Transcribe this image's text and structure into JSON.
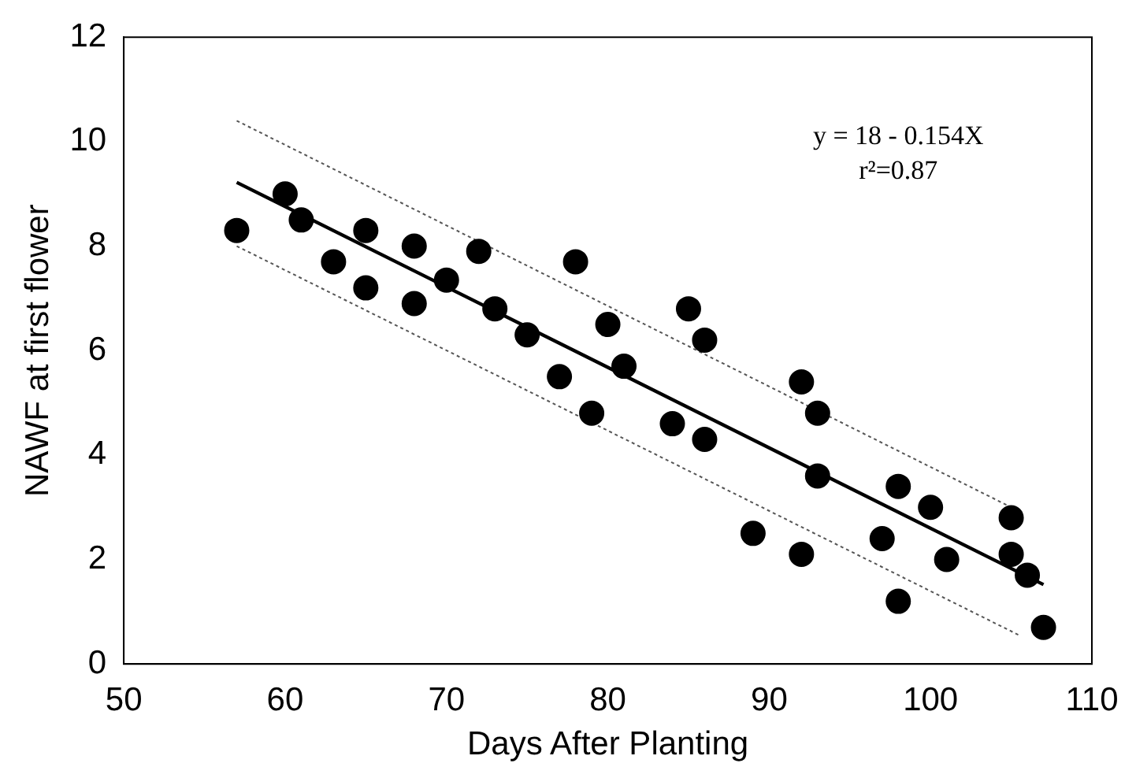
{
  "chart_data": {
    "type": "scatter",
    "xlabel": "Days After Planting",
    "ylabel": "NAWF at first flower",
    "xlim": [
      50,
      110
    ],
    "xticks": [
      50,
      60,
      70,
      80,
      90,
      100,
      110
    ],
    "ylim": [
      0,
      12
    ],
    "yticks": [
      0,
      2,
      4,
      6,
      8,
      10,
      12
    ],
    "grid": false,
    "legend": false,
    "annotations": [
      "y = 18 - 0.154X",
      "r²=0.87"
    ],
    "series": [
      {
        "marker": "circle",
        "color": "#000000",
        "x": [
          57,
          60,
          61,
          63,
          65,
          65,
          68,
          68,
          70,
          72,
          73,
          75,
          77,
          78,
          79,
          80,
          81,
          84,
          85,
          86,
          86,
          89,
          92,
          92,
          93,
          93,
          97,
          98,
          98,
          100,
          101,
          105,
          105,
          106,
          107
        ],
        "values": [
          8.3,
          9.0,
          8.5,
          7.7,
          8.3,
          7.2,
          8.0,
          6.9,
          7.35,
          7.9,
          6.8,
          6.3,
          5.5,
          7.7,
          4.8,
          6.5,
          5.7,
          4.6,
          6.8,
          6.2,
          4.3,
          2.5,
          5.4,
          2.1,
          4.8,
          3.6,
          2.4,
          3.4,
          1.2,
          3.0,
          2.0,
          2.8,
          2.1,
          1.7,
          0.7
        ]
      },
      {
        "type": "line",
        "color": "#000000",
        "x": [
          57,
          107
        ],
        "values": [
          9.22,
          1.52
        ],
        "line_style": "solid",
        "marker": "none"
      },
      {
        "type": "line",
        "color": "#555555",
        "x": [
          57,
          105
        ],
        "values": [
          10.4,
          3.0
        ],
        "line_style": "dotted",
        "marker": "none"
      },
      {
        "type": "line",
        "color": "#555555",
        "x": [
          57,
          105.5
        ],
        "values": [
          8.0,
          0.55
        ],
        "line_style": "dotted",
        "marker": "none"
      }
    ]
  }
}
